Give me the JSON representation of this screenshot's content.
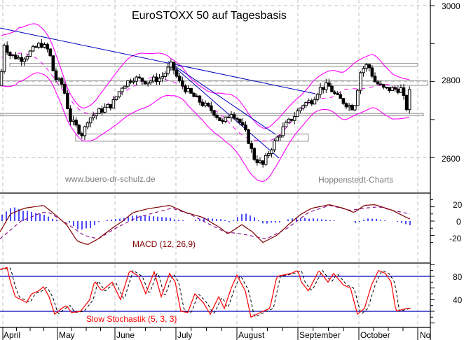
{
  "header": {
    "title": "EuroSTOXX 50 auf Tagesbasis"
  },
  "watermarks": {
    "left": "www.buero-dr-schulz.de",
    "right": "Hoppenstedt-Charts"
  },
  "colors": {
    "candle": "#000000",
    "bollinger": "#ff00ff",
    "trendline": "#0000c0",
    "support_box": "#a0a0a0",
    "macd_line": "#800000",
    "macd_signal": "#800080",
    "macd_histogram": "#0000ff",
    "stoch_k": "#ff0000",
    "stoch_d": "#000000",
    "stoch_levels": "#0000c0",
    "grid": "#c0c0c0"
  },
  "chart_data": [
    {
      "type": "candlestick",
      "title": "EuroSTOXX 50 auf Tagesbasis",
      "xlabel": "",
      "ylabel": "",
      "ylim": [
        2540,
        3010
      ],
      "yticks": [
        2600,
        2800,
        3000
      ],
      "x_categories": [
        "April",
        "May",
        "June",
        "July",
        "August",
        "September",
        "October",
        "Nov"
      ],
      "grid": true,
      "overlays": [
        "Bollinger Bands (upper, middle dashed, lower)",
        "Downtrend lines",
        "Horizontal support/resistance boxes"
      ],
      "approx_close_by_month_start": {
        "April": 2800,
        "May": 2730,
        "June": 2760,
        "July": 2800,
        "August": 2690,
        "September": 2745,
        "October": 2760,
        "end": 2800
      },
      "key_levels": {
        "high_april": 2920,
        "low_may": 2640,
        "high_june_end": 2845,
        "low_august": 2575,
        "high_october": 2845,
        "last": 2800
      },
      "horizontal_zones": [
        {
          "from": 2840,
          "to": 2848
        },
        {
          "from": 2790,
          "to": 2800
        },
        {
          "from": 2720,
          "to": 2712
        },
        {
          "from": 2660,
          "to": 2640
        }
      ]
    },
    {
      "type": "line",
      "title": "MACD (12, 26,9)",
      "ylim": [
        -35,
        30
      ],
      "yticks": [
        -20,
        0,
        20
      ],
      "series": [
        {
          "name": "MACD",
          "values_by_month_start": {
            "April": -15,
            "mid-April": 10,
            "end-April": 15,
            "May": 5,
            "mid-May": -28,
            "June": -12,
            "mid-June": 8,
            "July": 18,
            "mid-July": 5,
            "August": -15,
            "mid-August": -30,
            "September": 2,
            "mid-September": 24,
            "October": 12,
            "mid-October": 24,
            "end": 2
          }
        },
        {
          "name": "Signal",
          "values_by_month_start": {
            "April": -25,
            "May": 10,
            "June": -20,
            "July": 15,
            "August": -18,
            "September": -5,
            "October": 15,
            "end": 8
          }
        },
        {
          "name": "Histogram",
          "values_by_month_start": {
            "April": 12,
            "May": -8,
            "June": 6,
            "July": 2,
            "August": 0,
            "September": 12,
            "October": 5,
            "end": -6
          }
        }
      ]
    },
    {
      "type": "line",
      "title": "Slow Stochastik (5, 3, 3)",
      "ylim": [
        0,
        100
      ],
      "yticks": [
        40,
        80
      ],
      "levels": [
        20,
        80
      ],
      "series": [
        {
          "name": "%K",
          "values_by_month_start": {
            "April": 92,
            "mid-April": 45,
            "end-April": 60,
            "May": 15,
            "mid-May": 30,
            "late-May": 80,
            "June": 35,
            "mid-June": 90,
            "late-June": 85,
            "July": 20,
            "mid-July": 45,
            "August": 85,
            "mid-August": 10,
            "late-August": 80,
            "September": 60,
            "mid-September": 90,
            "late-September": 10,
            "October": 90,
            "mid-October": 20,
            "late-October": 55,
            "end": 30
          }
        },
        {
          "name": "%D",
          "values_by_month_start": {
            "April": 88,
            "May": 20,
            "June": 50,
            "July": 25,
            "August": 70,
            "September": 75,
            "October": 85,
            "end": 32
          }
        }
      ]
    }
  ],
  "axes": {
    "price_labels": [
      "3000",
      "2800",
      "2600"
    ],
    "macd_labels": [
      "20",
      "0",
      "-20"
    ],
    "stoch_labels": [
      "80",
      "40"
    ],
    "months": [
      "April",
      "May",
      "June",
      "July",
      "August",
      "September",
      "October",
      "No"
    ]
  },
  "indicator_labels": {
    "macd": "MACD (12, 26,9)",
    "stoch": "Slow Stochastik (5, 3, 3)"
  }
}
